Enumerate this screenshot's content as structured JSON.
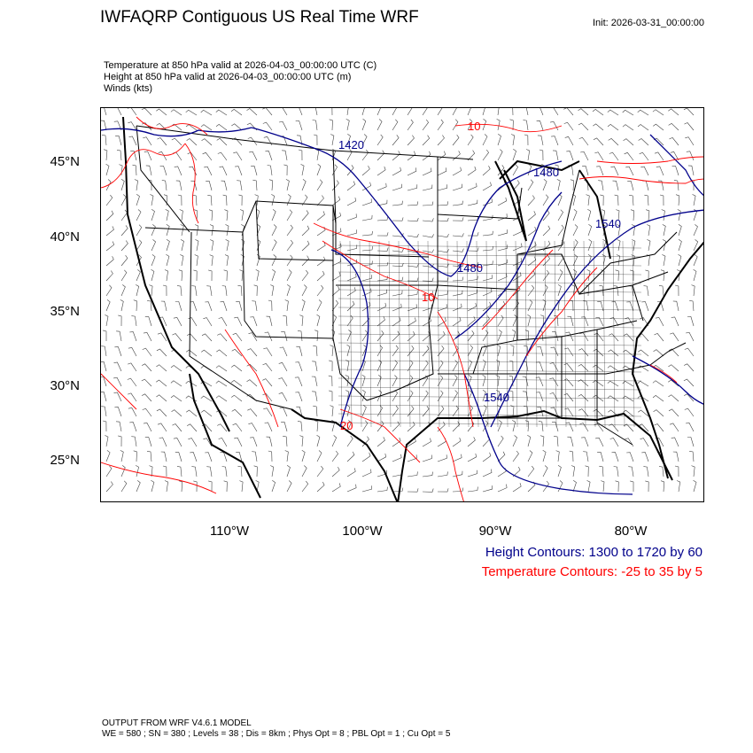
{
  "header": {
    "title": "IWFAQRP Contiguous US Real Time WRF",
    "init": "Init: 2026-03-31_00:00:00",
    "line1": "Temperature at 850 hPa valid at 2026-04-03_00:00:00 UTC   (C)",
    "line2": "Height at 850 hPa valid at 2026-04-03_00:00:00 UTC   (m)",
    "line3": "Winds   (kts)"
  },
  "axes": {
    "lat_labels": [
      "45°N",
      "40°N",
      "35°N",
      "30°N",
      "25°N"
    ],
    "lon_labels": [
      "110°W",
      "100°W",
      "90°W",
      "80°W"
    ]
  },
  "contour_labels": {
    "height": [
      "1420",
      "1480",
      "1540",
      "1480",
      "1540"
    ],
    "temperature": [
      "10",
      "10",
      "20"
    ]
  },
  "legend": {
    "height": "Height Contours: 1300 to 1720 by 60",
    "temperature": "Temperature Contours: -25 to 35 by 5"
  },
  "footer": {
    "line1": "OUTPUT FROM WRF V4.6.1 MODEL",
    "line2": "WE = 580 ; SN = 380 ; Levels = 38 ; Dis = 8km ; Phys Opt = 8 ; PBL Opt = 1 ; Cu Opt = 5"
  },
  "colors": {
    "height_contour": "#00008b",
    "temperature_contour": "#ff0000",
    "boundaries": "#000000",
    "wind_barbs": "#000000"
  }
}
